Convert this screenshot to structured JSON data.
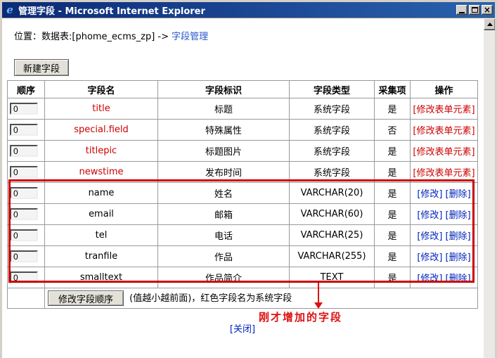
{
  "window": {
    "title": "管理字段 - Microsoft Internet Explorer"
  },
  "page": {
    "breadcrumb_prefix": "位置：数据表:[phome_ecms_zp] -> ",
    "breadcrumb_link": "字段管理",
    "new_field_button": "新建字段",
    "close_link": "[关闭]"
  },
  "table": {
    "headers": [
      "顺序",
      "字段名",
      "字段标识",
      "字段类型",
      "采集项",
      "操作"
    ],
    "rows": [
      {
        "order": "0",
        "field": "title",
        "label": "标题",
        "type": "系统字段",
        "collect": "是",
        "system": true,
        "ops": [
          "[修改表单元素]"
        ]
      },
      {
        "order": "0",
        "field": "special.field",
        "label": "特殊属性",
        "type": "系统字段",
        "collect": "否",
        "system": true,
        "ops": [
          "[修改表单元素]"
        ]
      },
      {
        "order": "0",
        "field": "titlepic",
        "label": "标题图片",
        "type": "系统字段",
        "collect": "是",
        "system": true,
        "ops": [
          "[修改表单元素]"
        ]
      },
      {
        "order": "0",
        "field": "newstime",
        "label": "发布时间",
        "type": "系统字段",
        "collect": "是",
        "system": true,
        "ops": [
          "[修改表单元素]"
        ]
      },
      {
        "order": "0",
        "field": "name",
        "label": "姓名",
        "type": "VARCHAR(20)",
        "collect": "是",
        "system": false,
        "ops": [
          "[修改]",
          "[删除]"
        ]
      },
      {
        "order": "0",
        "field": "email",
        "label": "邮箱",
        "type": "VARCHAR(60)",
        "collect": "是",
        "system": false,
        "ops": [
          "[修改]",
          "[删除]"
        ]
      },
      {
        "order": "0",
        "field": "tel",
        "label": "电话",
        "type": "VARCHAR(25)",
        "collect": "是",
        "system": false,
        "ops": [
          "[修改]",
          "[删除]"
        ]
      },
      {
        "order": "0",
        "field": "tranfile",
        "label": "作品",
        "type": "VARCHAR(255)",
        "collect": "是",
        "system": false,
        "ops": [
          "[修改]",
          "[删除]"
        ]
      },
      {
        "order": "0",
        "field": "smalltext",
        "label": "作品简介",
        "type": "TEXT",
        "collect": "是",
        "system": false,
        "ops": [
          "[修改]",
          "[删除]"
        ]
      }
    ],
    "footer": {
      "reorder_button": "修改字段顺序",
      "note": "(值越小越前面)，红色字段名为系统字段"
    }
  },
  "annotation": {
    "text": "刚才增加的字段"
  },
  "colors": {
    "system_red": "#cc0000",
    "annotation_red": "#dd1111",
    "link_blue": "#0022bb",
    "breadcrumb_link_blue": "#2b55cc",
    "titlebar_left": "#0b2a77",
    "titlebar_right": "#2a62ad"
  }
}
